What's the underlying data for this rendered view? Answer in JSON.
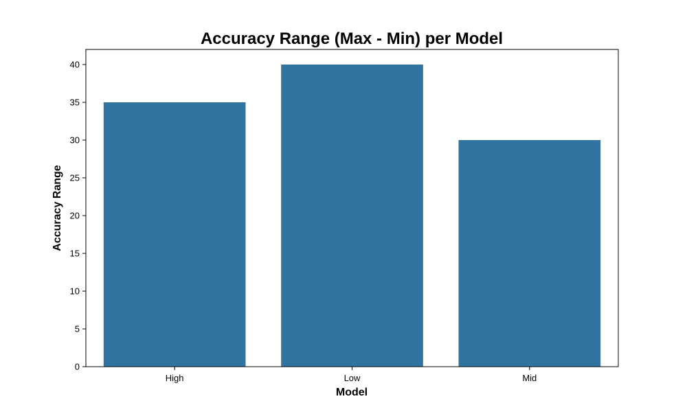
{
  "chart_data": {
    "type": "bar",
    "title": "Accuracy Range (Max - Min) per Model",
    "xlabel": "Model",
    "ylabel": "Accuracy Range",
    "categories": [
      "High",
      "Low",
      "Mid"
    ],
    "values": [
      35,
      40,
      30
    ],
    "ylim": [
      0,
      42
    ],
    "yticks": [
      0,
      5,
      10,
      15,
      20,
      25,
      30,
      35,
      40
    ],
    "bar_color": "#3274a1",
    "grid": false,
    "legend": "none"
  }
}
